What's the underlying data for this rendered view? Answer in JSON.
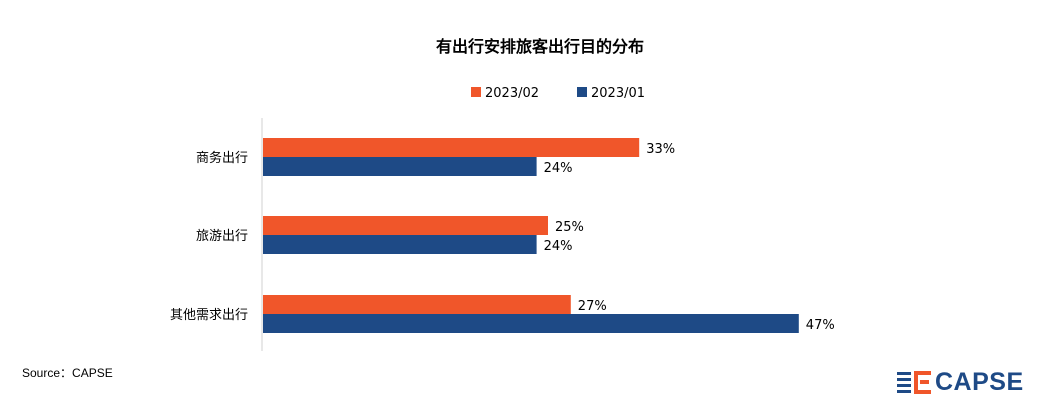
{
  "chart_data": {
    "type": "bar",
    "orientation": "horizontal",
    "title": "有出行安排旅客出行目的分布",
    "categories": [
      "商务出行",
      "旅游出行",
      "其他需求出行"
    ],
    "series": [
      {
        "name": "2023/02",
        "values": [
          33,
          25,
          27
        ],
        "labels": [
          "33%",
          "25%",
          "27%"
        ],
        "color": "#f0562a"
      },
      {
        "name": "2023/01",
        "values": [
          24,
          24,
          47
        ],
        "labels": [
          "24%",
          "24%",
          "47%"
        ],
        "color": "#1e4a86"
      }
    ],
    "xlim": [
      0,
      50
    ],
    "grid": false,
    "legend": "top-center"
  },
  "source": "Source：CAPSE",
  "logo": {
    "text": "CAPSE",
    "colors": {
      "orange": "#f0562a",
      "blue": "#1e4a86"
    }
  }
}
